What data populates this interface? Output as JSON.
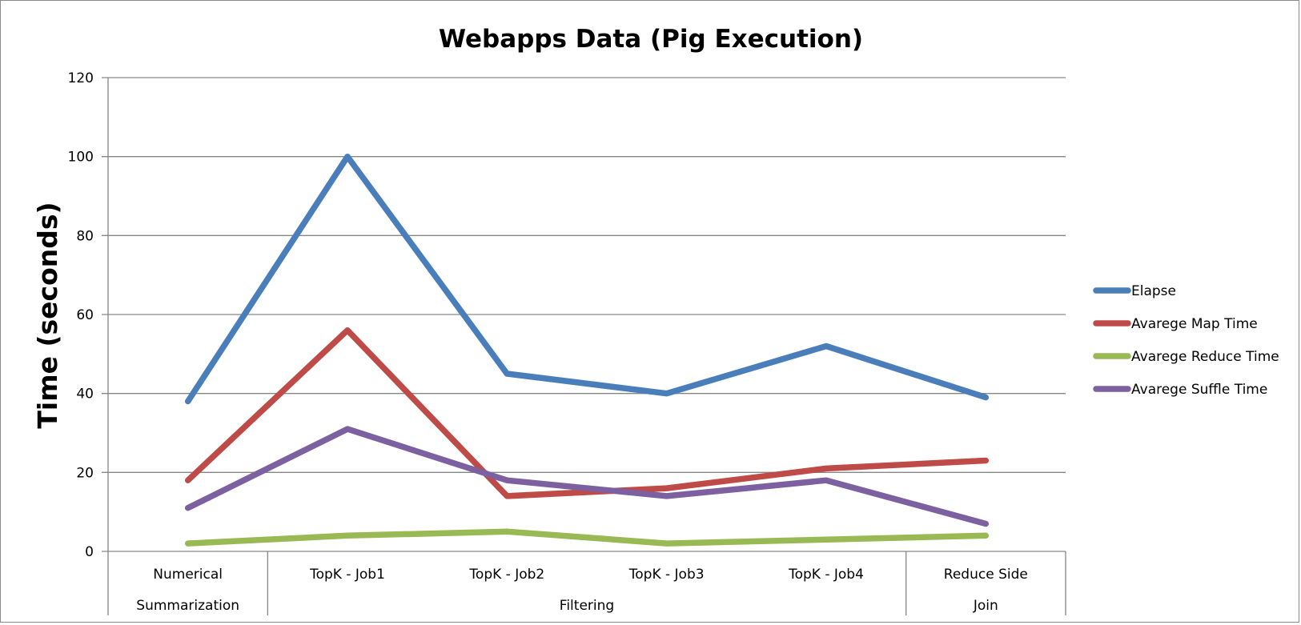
{
  "chart_data": {
    "type": "line",
    "title": "Webapps Data (Pig Execution)",
    "xlabel": "",
    "ylabel": "Time (seconds)",
    "ylim": [
      0,
      120
    ],
    "yticks": [
      0,
      20,
      40,
      60,
      80,
      100,
      120
    ],
    "grid": true,
    "legend_position": "right",
    "categories": [
      [
        "Numerical",
        "Summarization"
      ],
      [
        "TopK - Job1",
        "Filtering"
      ],
      [
        "TopK - Job2",
        "Filtering"
      ],
      [
        "TopK - Job3",
        "Filtering"
      ],
      [
        "TopK - Job4",
        "Filtering"
      ],
      [
        "Reduce Side",
        "Join"
      ]
    ],
    "category_labels": [
      "Numerical",
      "TopK - Job1",
      "TopK - Job2",
      "TopK - Job3",
      "TopK - Job4",
      "Reduce Side"
    ],
    "group_labels": [
      {
        "label": "Summarization",
        "count": 1
      },
      {
        "label": "Filtering",
        "count": 4
      },
      {
        "label": "Join",
        "count": 1
      }
    ],
    "series": [
      {
        "name": "Elapse",
        "color": "#4a7ebb",
        "values": [
          38,
          100,
          45,
          40,
          52,
          39
        ]
      },
      {
        "name": "Avarege Map Time",
        "color": "#be4b48",
        "values": [
          18,
          56,
          14,
          16,
          21,
          23
        ]
      },
      {
        "name": "Avarege Reduce Time",
        "color": "#98b954",
        "values": [
          2,
          4,
          5,
          2,
          3,
          4
        ]
      },
      {
        "name": "Avarege Suffle Time",
        "color": "#7d60a0",
        "values": [
          11,
          31,
          18,
          14,
          18,
          7
        ]
      }
    ]
  }
}
